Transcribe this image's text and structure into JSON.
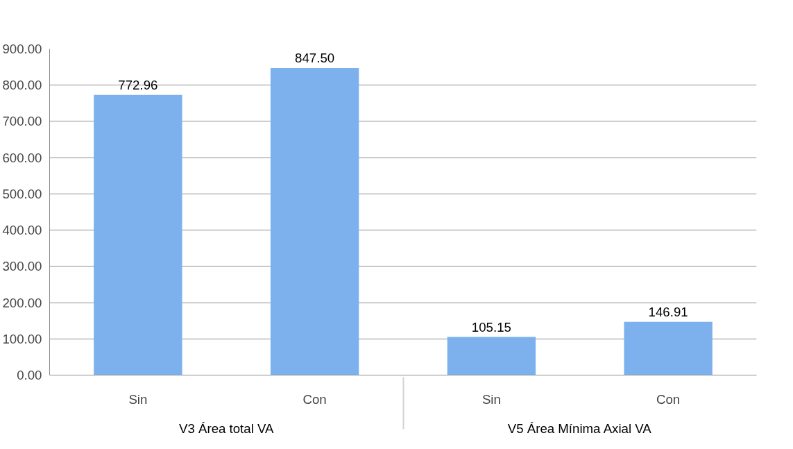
{
  "chart_data": {
    "type": "bar",
    "categories": [
      "Sin",
      "Con",
      "Sin",
      "Con"
    ],
    "annotations": [
      "V3 Área total VA",
      "V5 Área Mínima Axial VA"
    ],
    "values": [
      772.96,
      847.5,
      105.15,
      146.91
    ],
    "value_labels": [
      "772.96",
      "847.50",
      "105.15",
      "146.91"
    ],
    "color": "#7db1ee",
    "ylim": [
      0,
      900
    ],
    "yticks": [
      {
        "value": 0,
        "label": "0.00"
      },
      {
        "value": 100,
        "label": "100.00"
      },
      {
        "value": 200,
        "label": "200.00"
      },
      {
        "value": 300,
        "label": "300.00"
      },
      {
        "value": 400,
        "label": "400.00"
      },
      {
        "value": 500,
        "label": "500.00"
      },
      {
        "value": 600,
        "label": "600.00"
      },
      {
        "value": 700,
        "label": "700.00"
      },
      {
        "value": 800,
        "label": "800.00"
      },
      {
        "value": 900,
        "label": "900.00"
      }
    ],
    "grid": "y"
  }
}
